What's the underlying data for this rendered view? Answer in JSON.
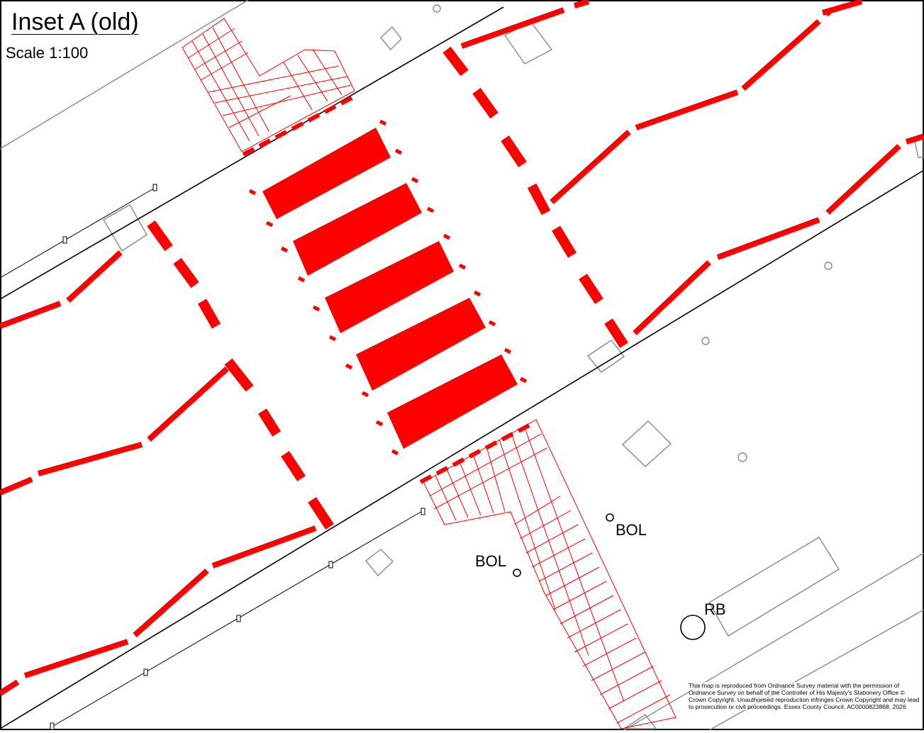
{
  "map": {
    "title": "Inset A (old)",
    "scale": "Scale 1:100",
    "labels": {
      "bol_1": "BOL",
      "bol_2": "BOL",
      "rb": "RB"
    },
    "copyright": "This map is reproduced from Ordnance Survey material with the permission of Ordnance Survey on behalf of the Controller of His Majesty's Stationery Office © Crown Copyright.  Unauthorised reproduction infringes Crown Copyright and may lead to prosecution or civil proceedings. Essex County Council, AC0000823868, 2026"
  },
  "colors": {
    "marking": "#ff0000",
    "kerb": "#000000",
    "feature": "#808080"
  }
}
